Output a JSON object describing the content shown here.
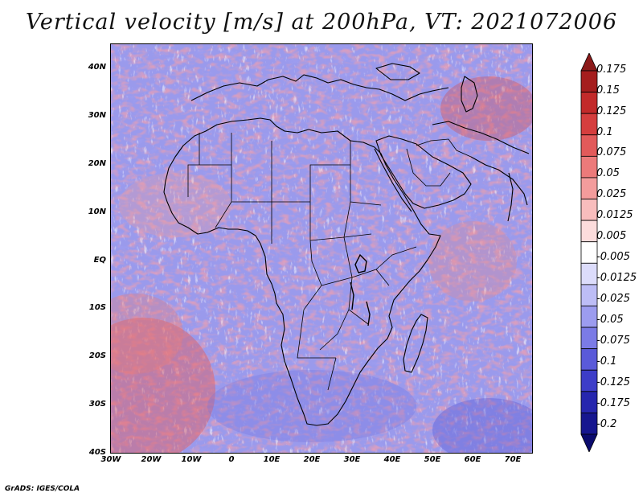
{
  "title": "Vertical velocity [m/s] at 200hPa, VT: 2021072006",
  "credit": "GrADS: IGES/COLA",
  "chart_data": {
    "type": "heatmap",
    "title": "Vertical velocity [m/s] at 200hPa, VT: 2021072006",
    "variable": "Vertical velocity",
    "units": "m/s",
    "level": "200hPa",
    "valid_time": "2021072006",
    "xlim": [
      -30,
      75
    ],
    "ylim": [
      -40,
      45
    ],
    "x_ticks": [
      -30,
      -20,
      -10,
      0,
      10,
      20,
      30,
      40,
      50,
      60,
      70
    ],
    "x_tick_labels": [
      "30W",
      "20W",
      "10W",
      "0",
      "10E",
      "20E",
      "30E",
      "40E",
      "50E",
      "60E",
      "70E"
    ],
    "y_ticks": [
      40,
      30,
      20,
      10,
      0,
      -10,
      -20,
      -30,
      -40
    ],
    "y_tick_labels": [
      "40N",
      "30N",
      "20N",
      "10N",
      "EQ",
      "10S",
      "20S",
      "30S",
      "40S"
    ],
    "colorbar": {
      "labels": [
        "0.175",
        "0.15",
        "0.125",
        "0.1",
        "0.075",
        "0.05",
        "0.025",
        "0.0125",
        "0.005",
        "-0.005",
        "-0.0125",
        "-0.025",
        "-0.05",
        "-0.075",
        "-0.1",
        "-0.125",
        "-0.175",
        "-0.2"
      ],
      "colors": [
        "#8b1a1a",
        "#a51e1e",
        "#c22a2a",
        "#d53e3e",
        "#e25a5a",
        "#ec7a7a",
        "#f39c9c",
        "#f8bdbd",
        "#fcdcdc",
        "#ffffff",
        "#dcdcfb",
        "#bdbdf6",
        "#9c9cef",
        "#7b7be6",
        "#5a5ad9",
        "#3d3dc8",
        "#2626ae",
        "#16168f",
        "#0b0b6e"
      ]
    }
  }
}
